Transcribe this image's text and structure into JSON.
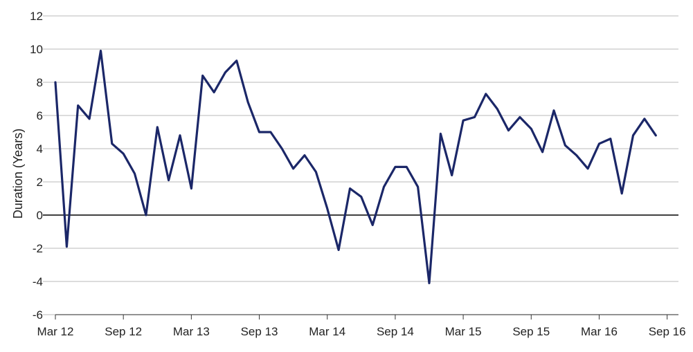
{
  "chart_data": {
    "type": "line",
    "title": "",
    "xlabel": "",
    "ylabel": "Duration (Years)",
    "ylim": [
      -6,
      12
    ],
    "y_ticks": [
      -6,
      -4,
      -2,
      0,
      2,
      4,
      6,
      8,
      10,
      12
    ],
    "y_tick_labels": [
      "-6",
      "-4",
      "-2",
      "0",
      "2",
      "4",
      "6",
      "8",
      "10",
      "12"
    ],
    "x_tick_labels": [
      "Mar 12",
      "Sep 12",
      "Mar 13",
      "Sep 13",
      "Mar 14",
      "Sep 14",
      "Mar 15",
      "Sep 15",
      "Mar 16",
      "Sep 16"
    ],
    "x_tick_months": [
      0,
      6,
      12,
      18,
      24,
      30,
      36,
      42,
      48,
      54
    ],
    "x_range_months": [
      0,
      55
    ],
    "grid": true,
    "zero_line": true,
    "line_color": "#1b2768",
    "grid_color": "#c8c8c8",
    "series": [
      {
        "x": [
          0,
          1,
          2,
          3,
          4,
          5,
          6,
          7,
          8,
          9,
          10,
          11,
          12,
          13,
          14,
          15,
          16,
          17,
          18,
          19,
          20,
          21,
          22,
          23,
          24,
          25,
          26,
          27,
          28,
          29,
          30,
          31,
          32,
          33,
          34,
          35,
          36,
          37,
          38,
          39,
          40,
          41,
          42,
          43,
          44,
          45,
          46,
          47,
          48,
          49,
          50,
          51,
          52,
          53
        ],
        "values": [
          8.0,
          -1.9,
          6.6,
          5.8,
          9.9,
          4.3,
          3.7,
          2.5,
          0.0,
          5.3,
          2.1,
          4.8,
          1.6,
          8.4,
          7.4,
          8.6,
          9.3,
          6.8,
          5.0,
          5.0,
          4.0,
          2.8,
          3.6,
          2.6,
          0.4,
          -2.1,
          1.6,
          1.1,
          -0.6,
          1.7,
          2.9,
          2.9,
          1.7,
          -4.1,
          4.9,
          2.4,
          5.7,
          5.9,
          7.3,
          6.4,
          5.1,
          5.9,
          5.2,
          3.8,
          6.3,
          4.2,
          3.6,
          2.8,
          4.3,
          4.6,
          1.3,
          4.8,
          5.8,
          4.8
        ]
      }
    ]
  }
}
